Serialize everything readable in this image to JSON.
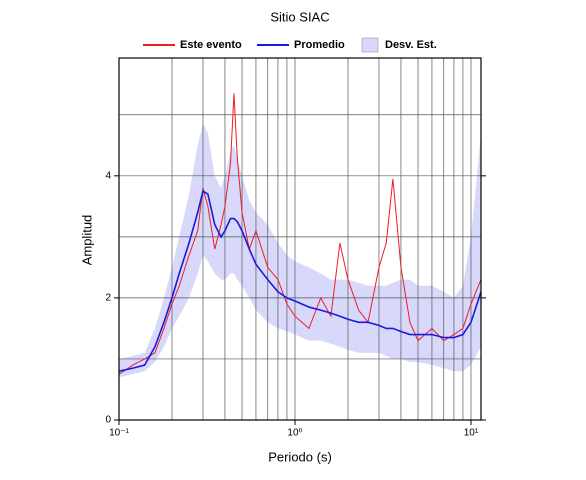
{
  "chart_data": {
    "type": "line",
    "title": "Sitio SIAC",
    "xlabel": "Periodo (s)",
    "ylabel": "Amplitud",
    "log_x": true,
    "x": [
      0.1,
      0.12,
      0.14,
      0.16,
      0.18,
      0.2,
      0.22,
      0.25,
      0.28,
      0.3,
      0.32,
      0.35,
      0.38,
      0.4,
      0.43,
      0.45,
      0.47,
      0.5,
      0.55,
      0.6,
      0.7,
      0.8,
      0.9,
      1,
      1.2,
      1.4,
      1.6,
      1.8,
      2,
      2.3,
      2.6,
      3,
      3.3,
      3.6,
      4,
      4.5,
      5,
      6,
      7,
      8,
      9,
      10,
      11.4
    ],
    "series": [
      {
        "name": "Este evento",
        "color": "#ee1c25",
        "values": [
          0.75,
          0.9,
          1.0,
          1.1,
          1.5,
          1.9,
          2.2,
          2.7,
          3.1,
          3.8,
          3.5,
          2.8,
          3.2,
          3.5,
          4.2,
          5.35,
          4.3,
          3.4,
          2.8,
          3.1,
          2.5,
          2.3,
          1.9,
          1.7,
          1.5,
          2.0,
          1.7,
          2.9,
          2.3,
          1.8,
          1.6,
          2.5,
          2.9,
          3.95,
          2.5,
          1.6,
          1.3,
          1.5,
          1.3,
          1.4,
          1.5,
          1.9,
          2.3
        ]
      },
      {
        "name": "Promedio",
        "color": "#1a1adf",
        "values": [
          0.8,
          0.85,
          0.9,
          1.2,
          1.6,
          2.0,
          2.4,
          2.9,
          3.4,
          3.75,
          3.7,
          3.2,
          3.0,
          3.1,
          3.3,
          3.3,
          3.25,
          3.1,
          2.8,
          2.55,
          2.3,
          2.1,
          2.0,
          1.95,
          1.85,
          1.8,
          1.75,
          1.7,
          1.65,
          1.6,
          1.6,
          1.55,
          1.5,
          1.5,
          1.45,
          1.4,
          1.4,
          1.4,
          1.35,
          1.35,
          1.4,
          1.6,
          2.1
        ]
      }
    ],
    "band": {
      "name": "Desv. Est.",
      "color": "#d8d8fb",
      "lower": [
        0.7,
        0.75,
        0.8,
        0.95,
        1.2,
        1.5,
        1.7,
        2.0,
        2.4,
        2.7,
        2.6,
        2.4,
        2.3,
        2.3,
        2.4,
        2.4,
        2.3,
        2.2,
        2.0,
        1.8,
        1.6,
        1.5,
        1.45,
        1.4,
        1.3,
        1.3,
        1.25,
        1.2,
        1.15,
        1.1,
        1.1,
        1.1,
        1.05,
        1.0,
        1.0,
        0.95,
        0.95,
        0.9,
        0.85,
        0.8,
        0.8,
        0.9,
        1.2
      ],
      "upper": [
        1.0,
        1.05,
        1.1,
        1.5,
        2.0,
        2.5,
        3.0,
        3.7,
        4.5,
        4.85,
        4.7,
        4.0,
        3.8,
        4.0,
        4.4,
        4.5,
        4.3,
        4.0,
        3.6,
        3.4,
        3.2,
        2.9,
        2.7,
        2.6,
        2.5,
        2.4,
        2.3,
        2.3,
        2.3,
        2.25,
        2.2,
        2.2,
        2.2,
        2.25,
        2.3,
        2.3,
        2.2,
        2.2,
        2.1,
        2.0,
        2.2,
        3.0,
        4.7
      ]
    },
    "xlim": [
      0.1,
      11.4
    ],
    "xticks": [
      {
        "value": 0.1,
        "label": "10⁻¹"
      },
      {
        "value": 1,
        "label": "10⁰"
      },
      {
        "value": 10,
        "label": "10¹"
      }
    ],
    "xgrid": [
      0.2,
      0.3,
      0.4,
      0.5,
      0.6,
      0.7,
      0.8,
      0.9,
      1,
      2,
      3,
      4,
      5,
      6,
      7,
      8,
      9,
      10
    ],
    "ylim": [
      0,
      5.93
    ],
    "yticks": [
      0,
      2,
      4
    ],
    "ygrid": [
      1,
      2,
      3,
      4,
      5
    ],
    "grid": true
  }
}
